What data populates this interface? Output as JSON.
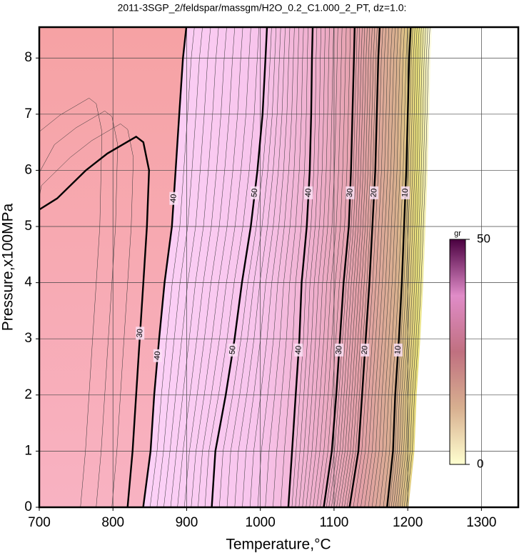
{
  "chart_data": {
    "type": "contour",
    "title": "2011-3SGP_2/feldspar/massgm/H2O_0.2_C1.000_2_PT, dz=1.0:",
    "x_label": "Temperature,°C",
    "y_label": "Pressure,x100MPa",
    "xlim": [
      700,
      1350
    ],
    "ylim": [
      0,
      8.55
    ],
    "xticks": [
      700,
      800,
      900,
      1000,
      1100,
      1200,
      1300
    ],
    "yticks": [
      0,
      1,
      2,
      3,
      4,
      5,
      6,
      7,
      8
    ],
    "grid": true,
    "contours": [
      {
        "level": 30,
        "T": [
          819.8,
          826.6,
          831.5,
          836.3,
          841.2,
          846.1,
          849,
          841.2,
          831.5,
          792.5,
          763.3,
          724.3,
          700
        ],
        "P": [
          0,
          1,
          2,
          3,
          4,
          5,
          6,
          6.5,
          6.6,
          6.3,
          6.0,
          5.5,
          5.3
        ],
        "label_P": [
          3.1
        ]
      },
      {
        "level": 40,
        "T": [
          841,
          851,
          856,
          862.6,
          870,
          880,
          885,
          890,
          895,
          899.6
        ],
        "P": [
          0,
          1,
          2,
          3,
          4,
          5,
          6,
          7,
          8,
          8.55
        ],
        "label_P": [
          2.7,
          5.5
        ]
      },
      {
        "level": 50,
        "T": [
          934,
          939,
          953,
          965,
          975,
          987,
          996,
          1003,
          1007,
          1009
        ],
        "P": [
          0,
          1,
          2,
          3,
          4,
          5,
          6,
          7,
          8,
          8.55
        ],
        "label_P": [
          2.8,
          5.6
        ]
      },
      {
        "level": 40,
        "T": [
          1038,
          1043,
          1048,
          1053,
          1056,
          1063,
          1067,
          1069,
          1070,
          1071
        ],
        "P": [
          0,
          1,
          2,
          3,
          4,
          5,
          6,
          7,
          8,
          8.55
        ],
        "label_P": [
          2.8,
          5.6
        ]
      },
      {
        "level": 30,
        "T": [
          1086,
          1097,
          1103,
          1108,
          1113,
          1120,
          1123,
          1125,
          1127,
          1128
        ],
        "P": [
          0,
          1,
          2,
          3,
          4,
          5,
          6,
          7,
          8,
          8.55
        ],
        "label_P": [
          2.8,
          5.6
        ]
      },
      {
        "level": 20,
        "T": [
          1121,
          1133,
          1138,
          1143,
          1148,
          1152,
          1156,
          1158,
          1160,
          1162
        ],
        "P": [
          0,
          1,
          2,
          3,
          4,
          5,
          6,
          7,
          8,
          8.55
        ],
        "label_P": [
          2.8,
          5.6
        ]
      },
      {
        "level": 10,
        "T": [
          1172,
          1180,
          1183,
          1188,
          1192,
          1195,
          1198,
          1200,
          1202,
          1204
        ],
        "P": [
          0,
          1,
          2,
          3,
          4,
          5,
          6,
          7,
          8,
          8.55
        ],
        "label_P": [
          2.8,
          5.6
        ]
      }
    ],
    "colorbar": {
      "label": "gr",
      "lim": [
        0,
        50
      ],
      "ticks": [
        0,
        50
      ]
    }
  }
}
